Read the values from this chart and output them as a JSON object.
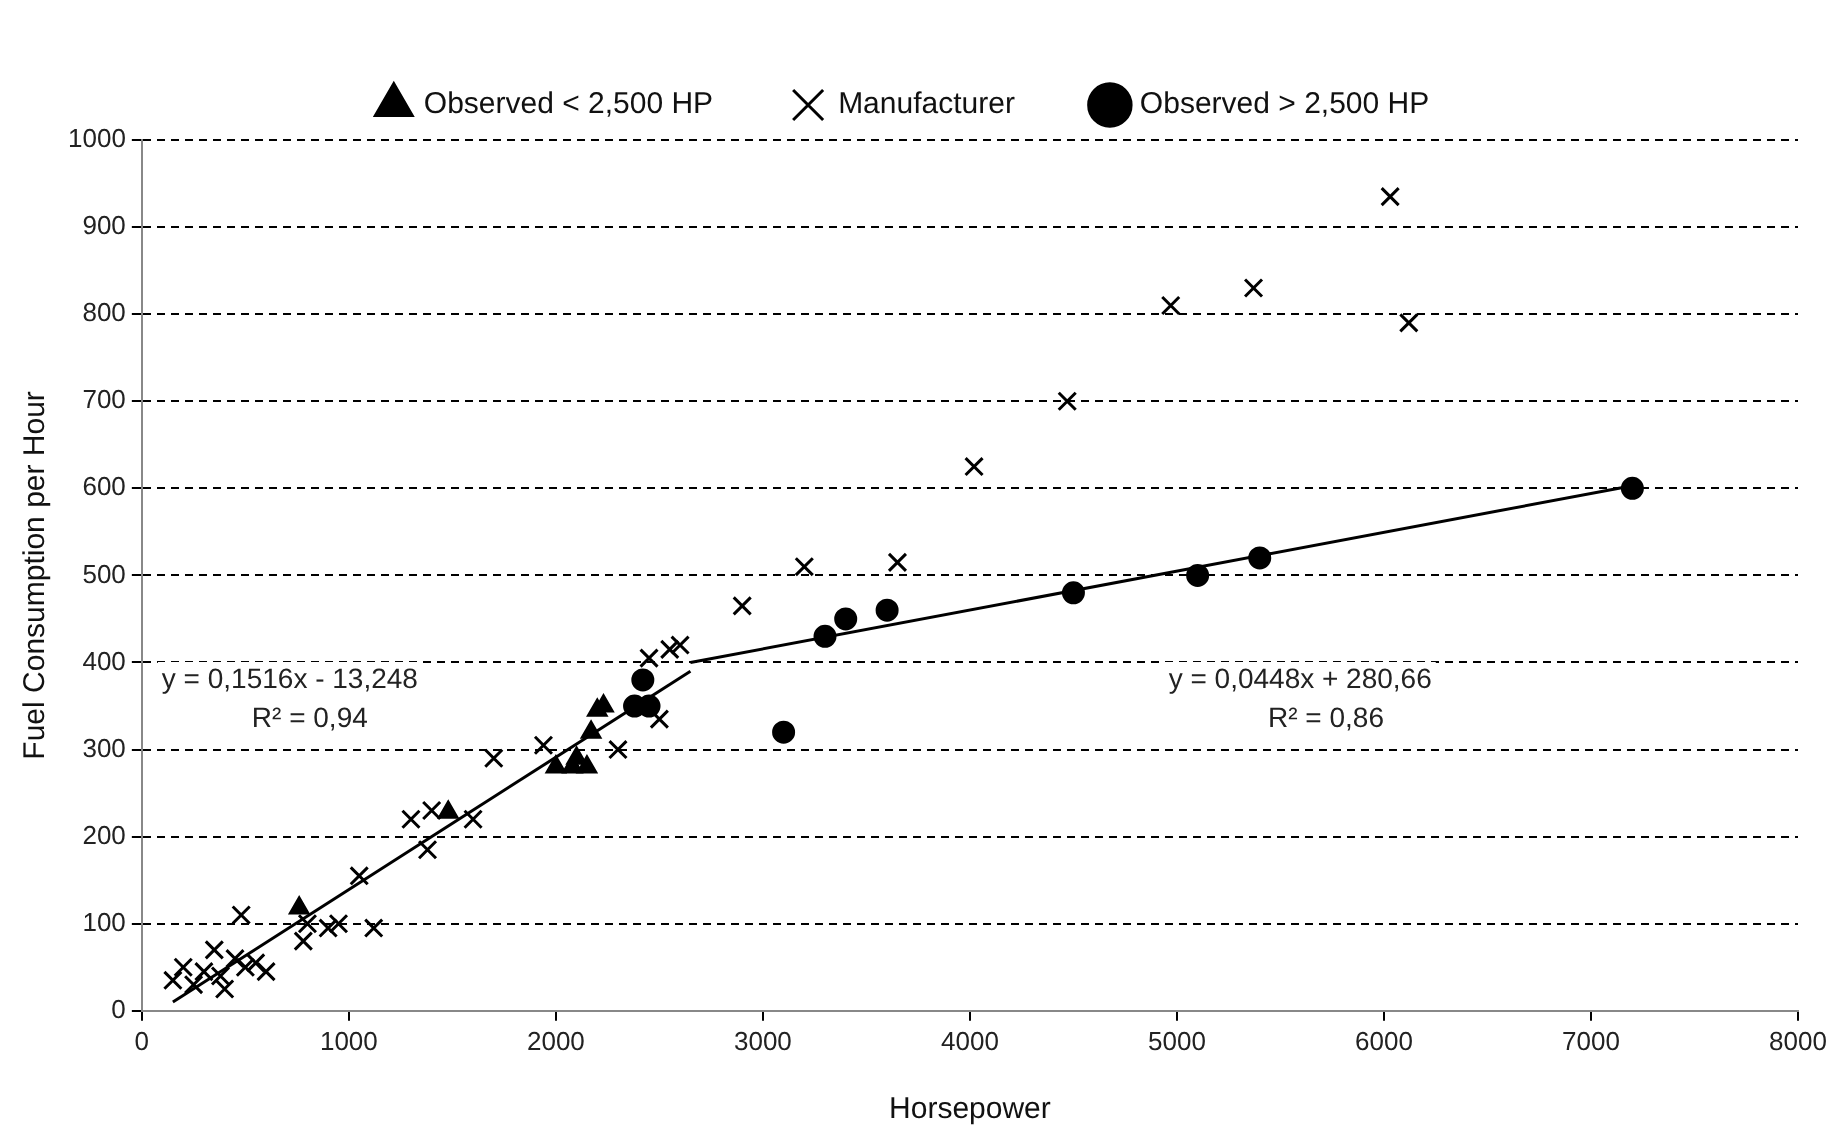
{
  "chart_data": {
    "type": "scatter",
    "xlabel": "Horsepower",
    "ylabel": "Fuel Consumption per Hour",
    "xlim": [
      0,
      8000
    ],
    "xticks": [
      0,
      1000,
      2000,
      3000,
      4000,
      5000,
      6000,
      7000,
      8000
    ],
    "ylim": [
      0,
      1000
    ],
    "yticks": [
      0,
      100,
      200,
      300,
      400,
      500,
      600,
      700,
      800,
      900,
      1000
    ],
    "grid": "y",
    "legend": "top",
    "series": [
      {
        "name": "Observed < 2,500 HP",
        "color": "#000000",
        "marker": "triangle",
        "x": [
          760,
          1480,
          2000,
          2080,
          2100,
          2150,
          2170,
          2200,
          2230
        ],
        "values": [
          118,
          228,
          280,
          280,
          290,
          280,
          320,
          345,
          350
        ]
      },
      {
        "name": "Manufacturer",
        "color": "#000000",
        "marker": "cross",
        "x": [
          150,
          200,
          250,
          300,
          350,
          380,
          400,
          450,
          480,
          500,
          550,
          600,
          780,
          800,
          900,
          950,
          1050,
          1120,
          1300,
          1380,
          1400,
          1600,
          1700,
          1940,
          2100,
          2300,
          2400,
          2450,
          2500,
          2550,
          2600,
          2900,
          3200,
          3350,
          3650,
          4020,
          4470,
          4970,
          5370,
          6030,
          6120
        ],
        "values": [
          35,
          50,
          30,
          45,
          70,
          40,
          25,
          60,
          110,
          50,
          55,
          45,
          80,
          100,
          95,
          100,
          155,
          95,
          220,
          185,
          230,
          220,
          290,
          305,
          null,
          300,
          null,
          405,
          335,
          415,
          420,
          465,
          510,
          null,
          515,
          625,
          700,
          810,
          830,
          935,
          790
        ]
      },
      {
        "name": "Observed > 2,500 HP",
        "color": "#000000",
        "marker": "circle",
        "x": [
          2380,
          2400,
          2420,
          2450,
          3100,
          3300,
          3400,
          3600,
          4500,
          5100,
          5400,
          7200
        ],
        "values": [
          350,
          null,
          380,
          350,
          320,
          430,
          450,
          460,
          480,
          500,
          520,
          600
        ]
      },
      {
        "type": "line",
        "color": "#000000",
        "marker": "none",
        "x": [
          150,
          2650
        ],
        "values": [
          10,
          390
        ]
      },
      {
        "type": "line",
        "color": "#000000",
        "marker": "none",
        "x": [
          2650,
          7200
        ],
        "values": [
          400,
          603
        ]
      }
    ],
    "annotations": [
      "y = 0,1516x - 13,248",
      "R² = 0,94",
      "y = 0,0448x + 280,66",
      "R² = 0,86"
    ]
  }
}
